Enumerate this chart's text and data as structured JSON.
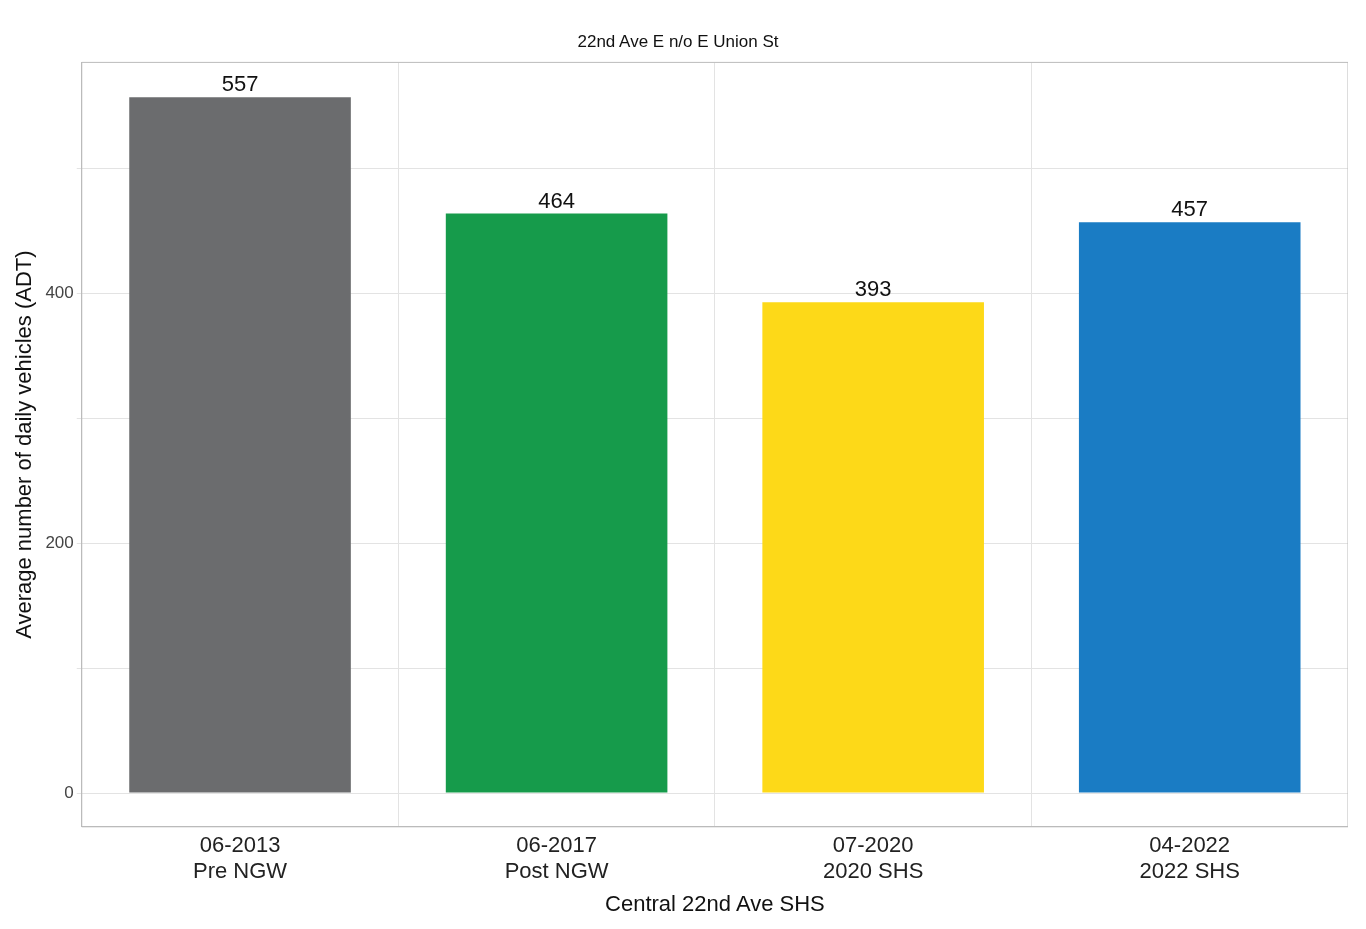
{
  "chart_data": {
    "type": "bar",
    "title": "22nd Ave E n/o E Union St",
    "xlabel": "Central 22nd Ave SHS",
    "ylabel": "Average number of daily vehicles (ADT)",
    "categories": [
      "06-2013\nPre NGW",
      "06-2017\nPost NGW",
      "07-2020\n2020 SHS",
      "04-2022\n2022 SHS"
    ],
    "values": [
      557,
      464,
      393,
      457
    ],
    "colors": [
      "#6b6c6e",
      "#169b4b",
      "#fdd918",
      "#1a7cc4"
    ],
    "ylim": [
      -27,
      585
    ],
    "yticks": [
      0,
      {
        "value": 100,
        "label": null
      },
      200,
      {
        "value": 300,
        "label": null
      },
      400,
      {
        "value": 500,
        "label": null
      }
    ],
    "grid": true,
    "data_labels": true
  }
}
